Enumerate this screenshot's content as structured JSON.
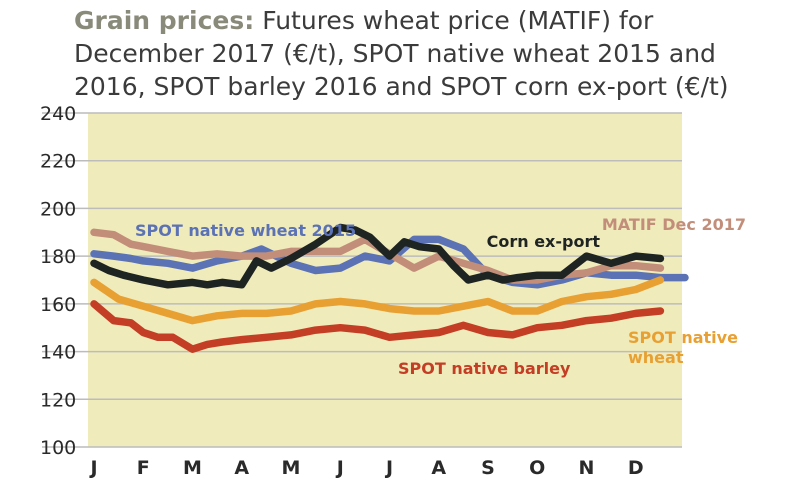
{
  "title_lead": "Grain prices:",
  "title_rest": "Futures wheat price (MATIF) for December 2017 (€/t), SPOT native wheat 2015 and 2016, SPOT barley 2016 and SPOT corn ex-port (€/t)",
  "chart_data": {
    "type": "line",
    "ylim": [
      100,
      240
    ],
    "yticks": [
      100,
      120,
      140,
      160,
      180,
      200,
      220,
      240
    ],
    "month_labels": [
      "J",
      "F",
      "M",
      "A",
      "M",
      "J",
      "J",
      "A",
      "S",
      "O",
      "N",
      "D"
    ],
    "grid": true,
    "series": [
      {
        "name": "SPOT native wheat 2015",
        "color": "#5b72b5",
        "label_lines": [
          "SPOT native wheat 2015"
        ],
        "x": [
          0,
          0.4,
          0.75,
          1,
          1.5,
          2,
          2.5,
          3,
          3.4,
          3.7,
          4,
          4.5,
          5,
          5.5,
          6,
          6.5,
          7,
          7.5,
          8,
          8.5,
          9,
          9.5,
          10,
          10.5,
          11,
          11.5,
          12
        ],
        "values": [
          181,
          180,
          179,
          178,
          177,
          175,
          178,
          180,
          183,
          180,
          177,
          174,
          175,
          180,
          178,
          187,
          187,
          183,
          172,
          169,
          168,
          170,
          173,
          172,
          172,
          171,
          171
        ]
      },
      {
        "name": "MATIF Dec 2017",
        "color": "#c28e7a",
        "label_lines": [
          "MATIF Dec 2017"
        ],
        "x": [
          0,
          0.4,
          0.75,
          1,
          1.5,
          2,
          2.5,
          3,
          3.5,
          4,
          4.5,
          5,
          5.5,
          6,
          6.5,
          7,
          7.5,
          8,
          8.5,
          9,
          9.5,
          10,
          10.5,
          11,
          11.5
        ],
        "values": [
          190,
          189,
          185,
          184,
          182,
          180,
          181,
          180,
          180,
          182,
          182,
          182,
          187,
          181,
          175,
          180,
          177,
          174,
          170,
          170,
          172,
          173,
          176,
          176,
          175
        ]
      },
      {
        "name": "Corn ex-port",
        "color": "#1e2422",
        "label_lines": [
          "Corn ex-port"
        ],
        "x": [
          0,
          0.3,
          0.6,
          1,
          1.5,
          2,
          2.3,
          2.6,
          3,
          3.3,
          3.6,
          4,
          4.5,
          5,
          5.3,
          5.6,
          6,
          6.3,
          6.6,
          7,
          7.3,
          7.6,
          8,
          8.3,
          8.6,
          9,
          9.5,
          10,
          10.5,
          11,
          11.5
        ],
        "values": [
          177,
          174,
          172,
          170,
          168,
          169,
          168,
          169,
          168,
          178,
          175,
          179,
          185,
          192,
          191,
          188,
          180,
          186,
          184,
          183,
          176,
          170,
          172,
          170,
          171,
          172,
          172,
          180,
          177,
          180,
          179
        ]
      },
      {
        "name": "SPOT native wheat",
        "color": "#e8a033",
        "label_lines": [
          "SPOT native",
          "wheat"
        ],
        "x": [
          0,
          0.5,
          1,
          1.5,
          2,
          2.5,
          3,
          3.5,
          4,
          4.5,
          5,
          5.5,
          6,
          6.5,
          7,
          7.5,
          8,
          8.5,
          9,
          9.5,
          10,
          10.5,
          11,
          11.5
        ],
        "values": [
          169,
          162,
          159,
          156,
          153,
          155,
          156,
          156,
          157,
          160,
          161,
          160,
          158,
          157,
          157,
          159,
          161,
          157,
          157,
          161,
          163,
          164,
          166,
          170
        ]
      },
      {
        "name": "SPOT native barley",
        "color": "#c33e24",
        "label_lines": [
          "SPOT native barley"
        ],
        "x": [
          0,
          0.4,
          0.75,
          1,
          1.3,
          1.6,
          2,
          2.3,
          2.6,
          3,
          3.5,
          4,
          4.5,
          5,
          5.5,
          6,
          6.5,
          7,
          7.5,
          8,
          8.5,
          9,
          9.5,
          10,
          10.5,
          11,
          11.5
        ],
        "values": [
          160,
          153,
          152,
          148,
          146,
          146,
          141,
          143,
          144,
          145,
          146,
          147,
          149,
          150,
          149,
          146,
          147,
          148,
          151,
          148,
          147,
          150,
          151,
          153,
          154,
          156,
          157
        ]
      }
    ]
  }
}
